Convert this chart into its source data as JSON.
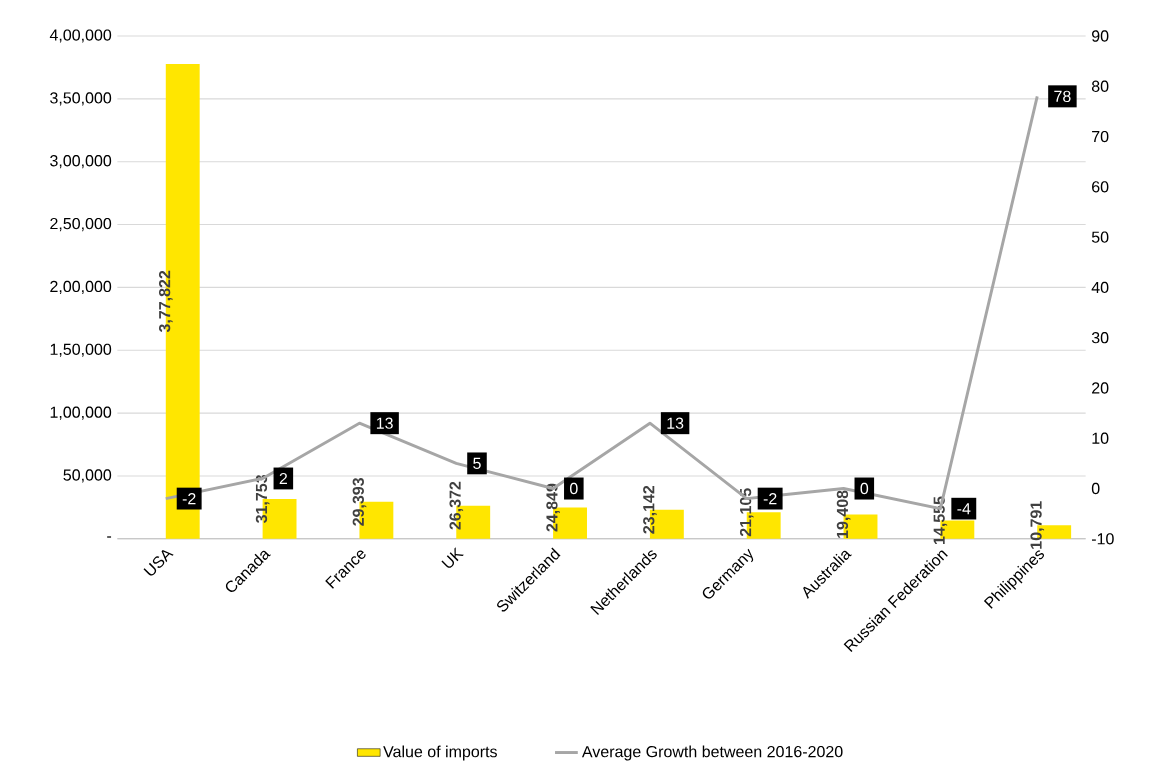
{
  "chart_data": {
    "type": "bar",
    "categories": [
      "USA",
      "Canada",
      "France",
      "UK",
      "Switzerland",
      "Netherlands",
      "Germany",
      "Australia",
      "Russian Federation",
      "Philippines"
    ],
    "series": [
      {
        "name": "Value of imports",
        "color": "#ffe600",
        "values": [
          377822,
          31753,
          29393,
          26372,
          24849,
          23142,
          21105,
          19408,
          14555,
          10791
        ],
        "value_labels": [
          "3,77,822",
          "31,753",
          "29,393",
          "26,372",
          "24,849",
          "23,142",
          "21,105",
          "19,408",
          "14,555",
          "10,791"
        ]
      },
      {
        "name": "Average Growth between 2016-2020",
        "type": "line",
        "axis": "y2",
        "color": "#a6a6a6",
        "values": [
          -2,
          2,
          13,
          5,
          0,
          13,
          -2,
          0,
          -4,
          78
        ],
        "value_labels": [
          "-2",
          "2",
          "13",
          "5",
          "0",
          "13",
          "-2",
          "0",
          "-4",
          "78"
        ]
      }
    ],
    "ylim": [
      0,
      400000
    ],
    "yticks": [
      {
        "value": 0,
        "label": "-"
      },
      {
        "value": 50000,
        "label": "50,000"
      },
      {
        "value": 100000,
        "label": "1,00,000"
      },
      {
        "value": 150000,
        "label": "1,50,000"
      },
      {
        "value": 200000,
        "label": "2,00,000"
      },
      {
        "value": 250000,
        "label": "2,50,000"
      },
      {
        "value": 300000,
        "label": "3,00,000"
      },
      {
        "value": 350000,
        "label": "3,50,000"
      },
      {
        "value": 400000,
        "label": "4,00,000"
      }
    ],
    "y2lim": [
      -10,
      90
    ],
    "y2ticks": [
      -10,
      0,
      10,
      20,
      30,
      40,
      50,
      60,
      70,
      80,
      90
    ],
    "grid": "y",
    "legend": "bottom",
    "marker": "none",
    "line_style": "solid"
  }
}
